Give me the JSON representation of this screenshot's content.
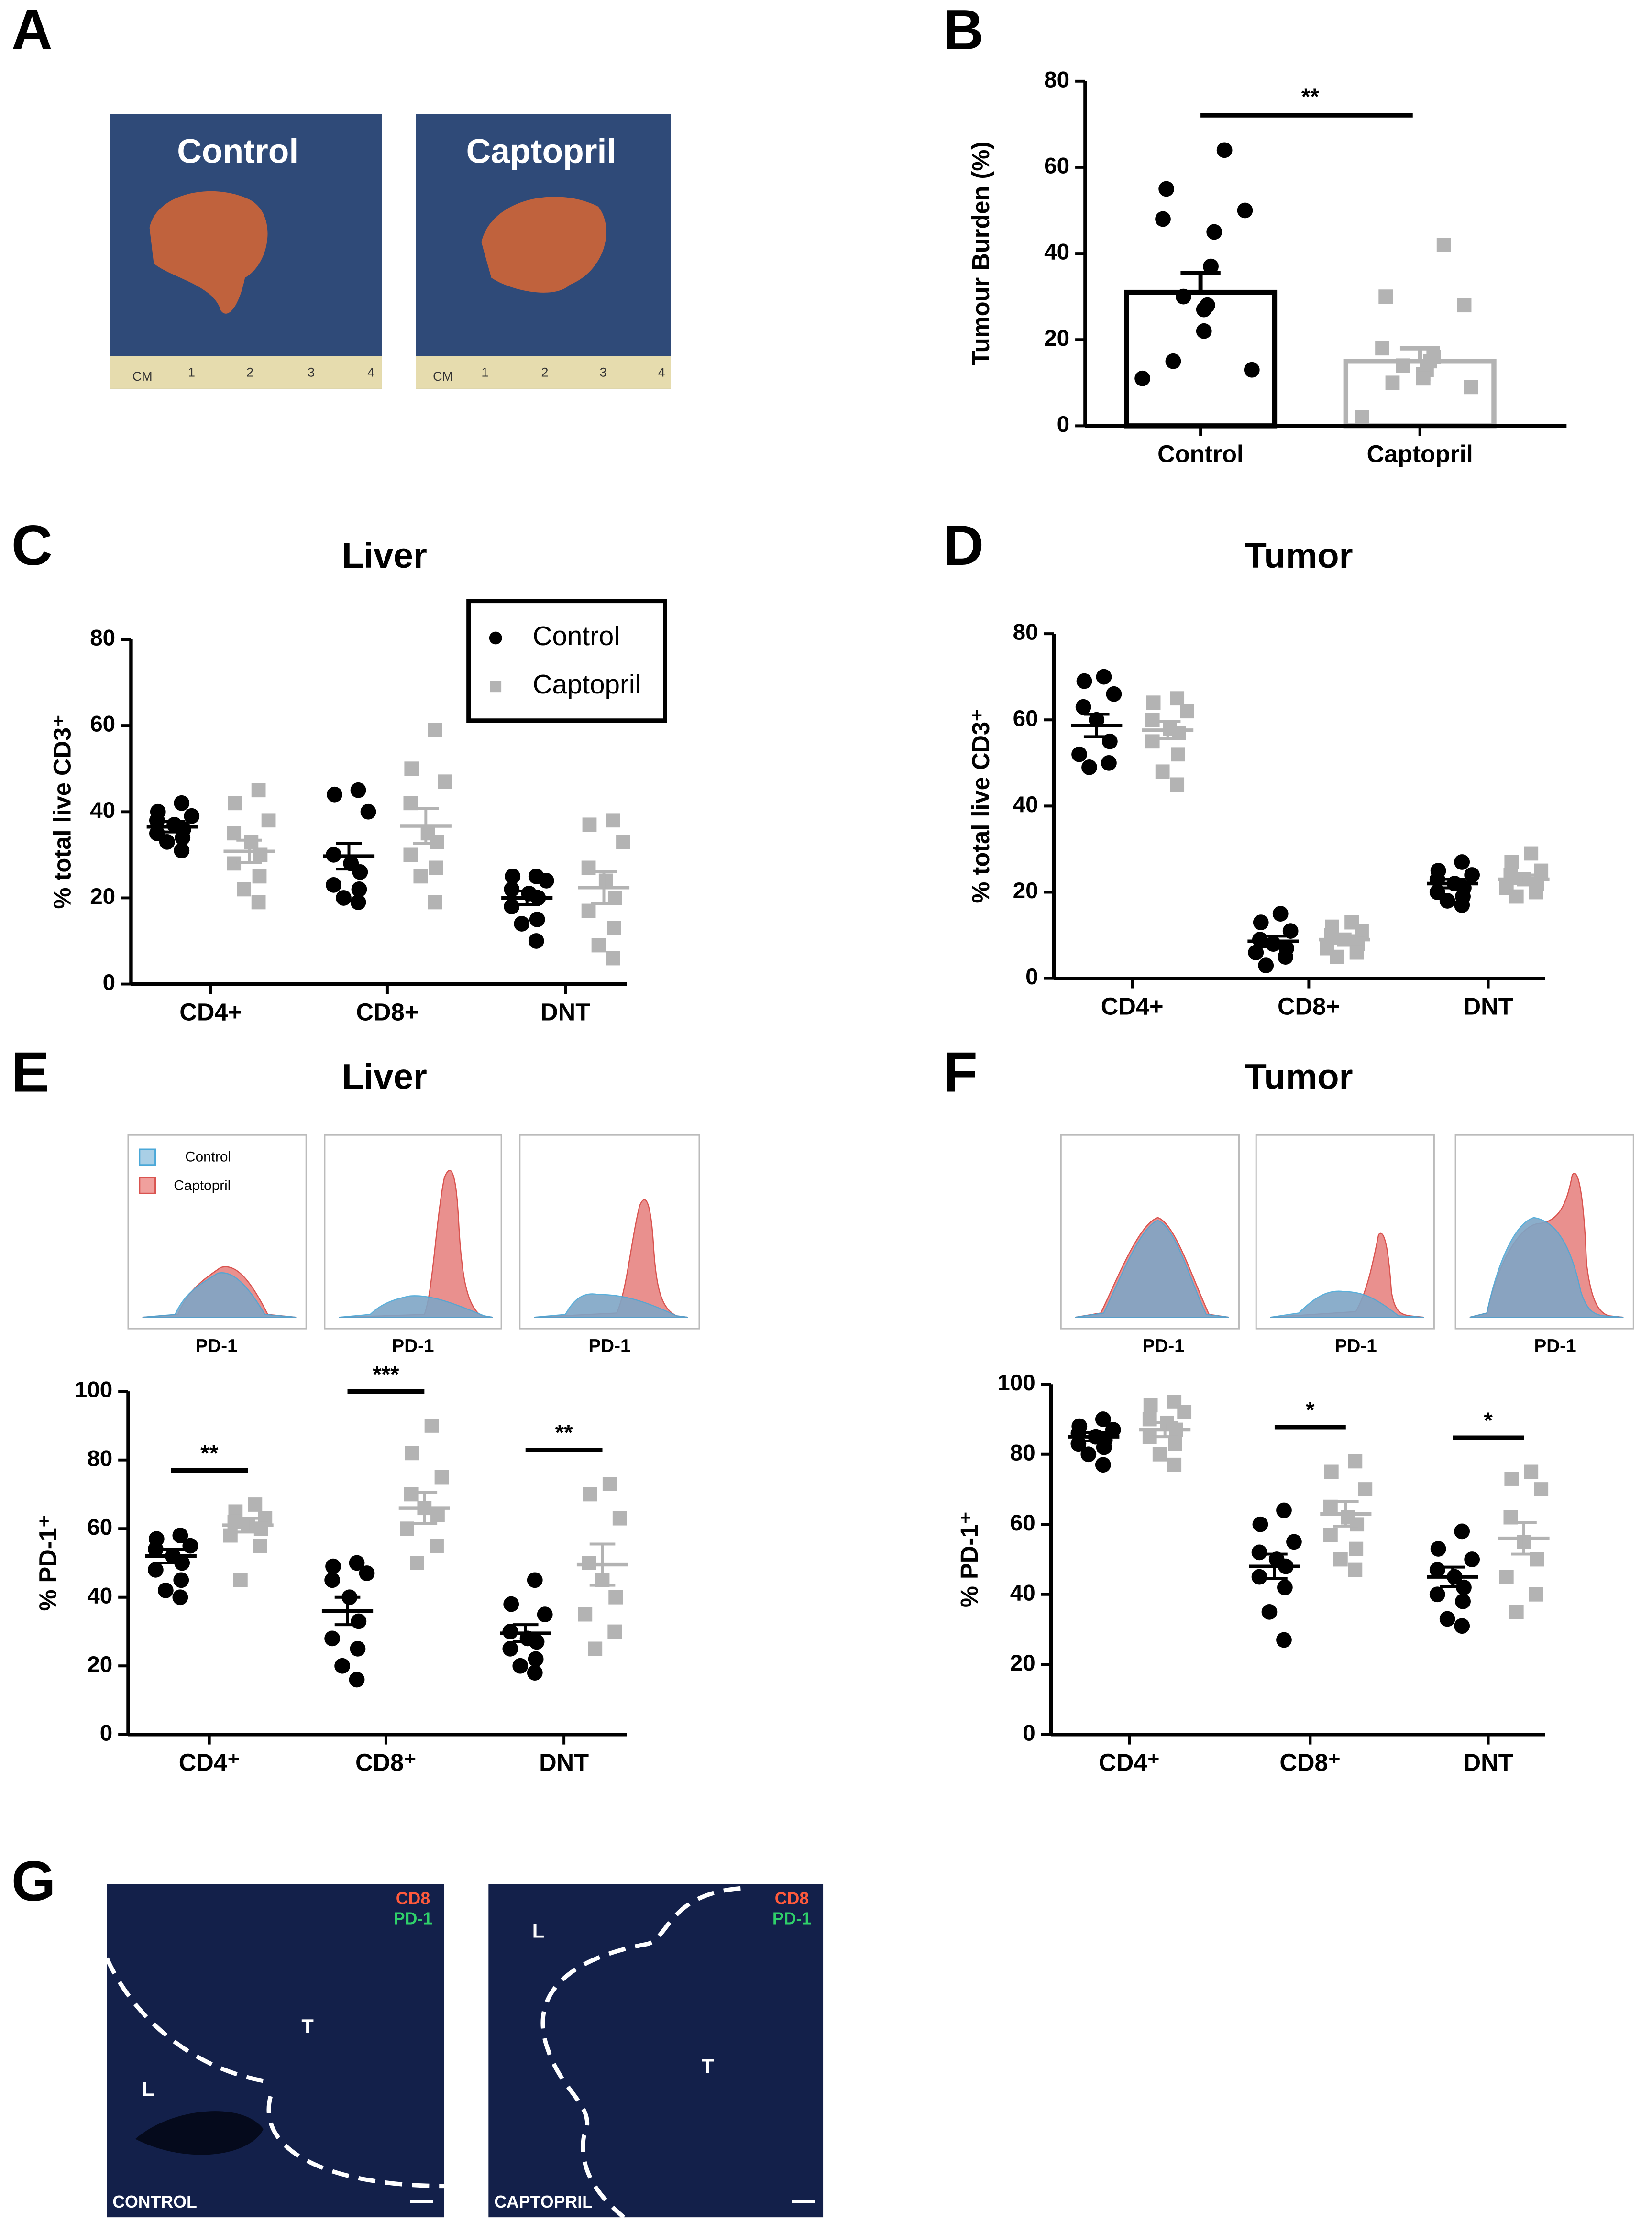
{
  "panels": [
    "A",
    "B",
    "C",
    "D",
    "E",
    "F",
    "G"
  ],
  "photos": {
    "labels": [
      "Control",
      "Captopril"
    ],
    "ruler_labels": [
      "CM",
      "1",
      "2",
      "3",
      "4"
    ]
  },
  "histograms": {
    "legend": [
      "Control",
      "Captopril"
    ],
    "x_label": "PD-1"
  },
  "micrographs": {
    "stain_labels": [
      "CD8",
      "PD-1"
    ],
    "region_labels": [
      "T",
      "L"
    ],
    "captions": [
      "CONTROL",
      "CAPTOPRIL"
    ]
  },
  "chart_data": [
    {
      "type": "bar_dot",
      "y_label": "Tumour Burden (%)",
      "categories": [
        "Control",
        "Captopril"
      ],
      "values": [
        31,
        15
      ],
      "errors": [
        4.5,
        3
      ],
      "colors": [
        "#000000",
        "#b3b3b3"
      ],
      "markers": [
        "circle",
        "square"
      ],
      "points": [
        [
          64,
          55,
          50,
          48,
          45,
          37,
          30,
          28,
          27,
          22,
          15,
          13,
          11
        ],
        [
          42,
          30,
          28,
          18,
          16,
          15,
          14,
          13,
          12,
          11,
          10,
          9,
          2
        ]
      ],
      "significance": "**",
      "ylim": [
        0,
        80
      ],
      "yticks": [
        0,
        20,
        40,
        60,
        80
      ]
    },
    {
      "type": "dot",
      "title": "Liver",
      "y_label": "% total live CD3⁺",
      "categories": [
        "CD4+",
        "CD8+",
        "DNT"
      ],
      "ylim": [
        0,
        80
      ],
      "yticks": [
        0,
        20,
        40,
        60,
        80
      ],
      "legend": "upper right",
      "series": [
        {
          "name": "Control",
          "color": "#000000",
          "marker": "circle",
          "points": [
            [
              42,
              40,
              39,
              38,
              37,
              36,
              35,
              34,
              33,
              31
            ],
            [
              45,
              44,
              40,
              30,
              28,
              26,
              23,
              22,
              20,
              19
            ],
            [
              25,
              25,
              24,
              22,
              21,
              20,
              18,
              15,
              14,
              10
            ]
          ],
          "mean": [
            36.5,
            29.7,
            20
          ],
          "sem": [
            1.2,
            3,
            1.6
          ]
        },
        {
          "name": "Captopril",
          "color": "#b3b3b3",
          "marker": "square",
          "points": [
            [
              45,
              42,
              38,
              35,
              33,
              30,
              28,
              25,
              22,
              19
            ],
            [
              59,
              50,
              47,
              42,
              35,
              33,
              30,
              27,
              25,
              19
            ],
            [
              38,
              37,
              33,
              27,
              24,
              20,
              17,
              13,
              9,
              6
            ]
          ],
          "mean": [
            30.8,
            36.7,
            22.4
          ],
          "sem": [
            2.6,
            4,
            3.7
          ]
        }
      ]
    },
    {
      "type": "dot",
      "title": "Tumor",
      "y_label": "% total live CD3⁺",
      "categories": [
        "CD4+",
        "CD8+",
        "DNT"
      ],
      "ylim": [
        0,
        80
      ],
      "yticks": [
        0,
        20,
        40,
        60,
        80
      ],
      "series": [
        {
          "name": "Control",
          "color": "#000000",
          "marker": "circle",
          "points": [
            [
              70,
              69,
              66,
              63,
              60,
              55,
              52,
              50,
              49
            ],
            [
              15,
              13,
              11,
              9,
              8,
              7,
              6,
              5,
              3
            ],
            [
              27,
              25,
              24,
              23,
              22,
              21,
              20,
              19,
              18,
              17
            ]
          ],
          "mean": [
            58.7,
            8.6,
            22
          ],
          "sem": [
            2.6,
            1.2,
            1
          ]
        },
        {
          "name": "Captopril",
          "color": "#b3b3b3",
          "marker": "square",
          "points": [
            [
              65,
              64,
              62,
              60,
              58,
              57,
              55,
              52,
              48,
              45
            ],
            [
              13,
              12,
              11,
              10,
              9,
              8,
              7,
              6,
              5
            ],
            [
              29,
              27,
              25,
              24,
              23,
              22,
              21,
              20,
              19
            ]
          ],
          "mean": [
            57.6,
            9,
            23
          ],
          "sem": [
            2,
            0.9,
            1
          ]
        }
      ]
    },
    {
      "type": "dot",
      "title": "Liver",
      "y_label": "% PD-1⁺",
      "categories": [
        "CD4⁺",
        "CD8⁺",
        "DNT"
      ],
      "ylim": [
        0,
        100
      ],
      "yticks": [
        0,
        20,
        40,
        60,
        80,
        100
      ],
      "significance": [
        "**",
        "***",
        "**"
      ],
      "series": [
        {
          "name": "Control",
          "color": "#000000",
          "marker": "circle",
          "points": [
            [
              58,
              57,
              55,
              54,
              52,
              50,
              48,
              45,
              42,
              40
            ],
            [
              50,
              49,
              47,
              45,
              40,
              33,
              28,
              25,
              20,
              16
            ],
            [
              45,
              38,
              35,
              30,
              28,
              27,
              25,
              22,
              20,
              18
            ]
          ],
          "mean": [
            52,
            36,
            29.5
          ],
          "sem": [
            2,
            4,
            2.5
          ]
        },
        {
          "name": "Captopril",
          "color": "#b3b3b3",
          "marker": "square",
          "points": [
            [
              67,
              65,
              63,
              62,
              61,
              60,
              58,
              55,
              45
            ],
            [
              90,
              82,
              75,
              70,
              66,
              64,
              60,
              55,
              50
            ],
            [
              73,
              70,
              63,
              50,
              45,
              40,
              35,
              30,
              25
            ]
          ],
          "mean": [
            61,
            66,
            49.5
          ],
          "sem": [
            2,
            4.5,
            6
          ]
        }
      ]
    },
    {
      "type": "dot",
      "title": "Tumor",
      "y_label": "% PD-1⁺",
      "categories": [
        "CD4⁺",
        "CD8⁺",
        "DNT"
      ],
      "ylim": [
        0,
        100
      ],
      "yticks": [
        0,
        20,
        40,
        60,
        80,
        100
      ],
      "significance": [
        null,
        "*",
        "*"
      ],
      "series": [
        {
          "name": "Control",
          "color": "#000000",
          "marker": "circle",
          "points": [
            [
              90,
              88,
              87,
              86,
              85,
              84,
              83,
              82,
              80,
              77
            ],
            [
              64,
              60,
              55,
              52,
              50,
              48,
              45,
              42,
              35,
              27
            ],
            [
              58,
              53,
              50,
              47,
              45,
              42,
              40,
              38,
              33,
              31
            ]
          ],
          "mean": [
            85,
            48,
            45
          ],
          "sem": [
            1.2,
            3.5,
            2.8
          ]
        },
        {
          "name": "Captopril",
          "color": "#b3b3b3",
          "marker": "square",
          "points": [
            [
              95,
              94,
              92,
              90,
              89,
              87,
              85,
              83,
              80,
              77
            ],
            [
              78,
              75,
              70,
              65,
              62,
              60,
              57,
              53,
              50,
              47
            ],
            [
              75,
              73,
              70,
              62,
              55,
              50,
              45,
              40,
              35
            ]
          ],
          "mean": [
            87,
            63,
            56
          ],
          "sem": [
            2,
            3.5,
            4.5
          ]
        }
      ]
    }
  ]
}
